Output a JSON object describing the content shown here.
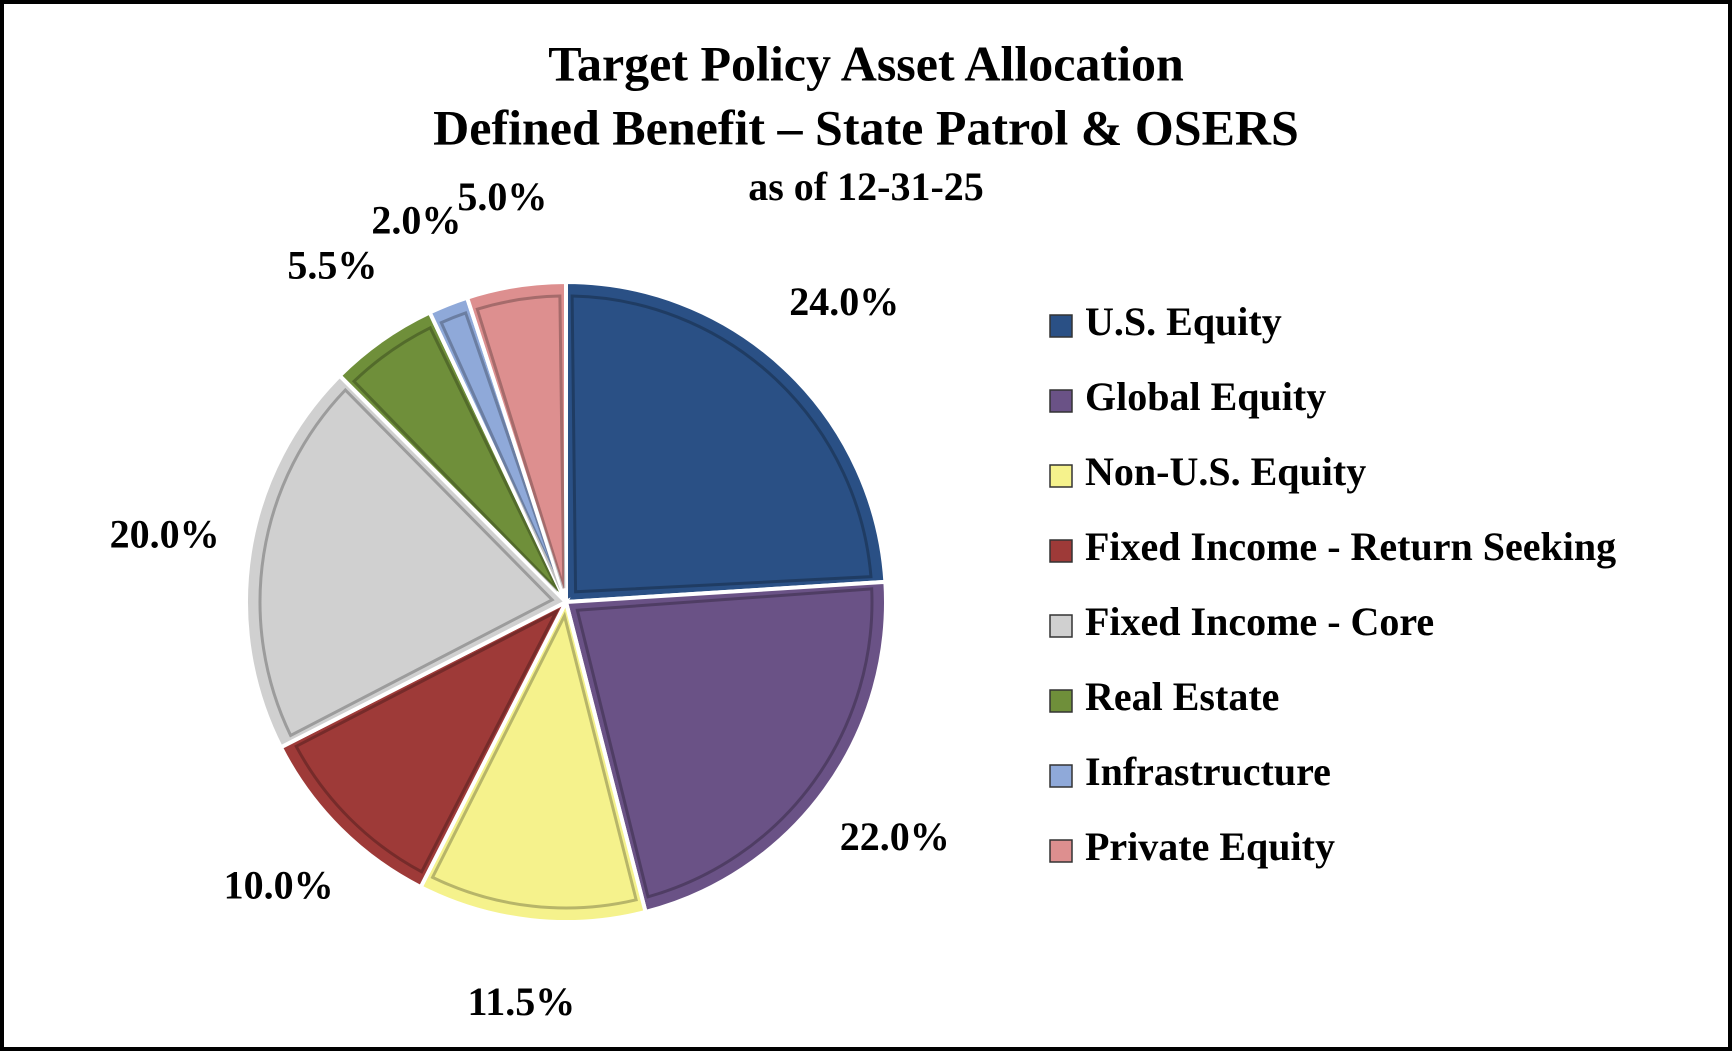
{
  "chart_data": {
    "type": "pie",
    "title": "Target Policy Asset Allocation",
    "subtitle": "Defined Benefit – State Patrol & OSERS",
    "note": "as of 12-31-25",
    "categories": [
      "U.S. Equity",
      "Global Equity",
      "Non-U.S. Equity",
      "Fixed Income - Return Seeking",
      "Fixed Income - Core",
      "Real Estate",
      "Infrastructure",
      "Private Equity"
    ],
    "values": [
      24,
      22,
      11.5,
      10,
      20,
      5.5,
      2,
      5
    ],
    "value_labels": [
      "24.0%",
      "22.0%",
      "11.5%",
      "10.0%",
      "20.0%",
      "5.5%",
      "2.0%",
      "5.0%"
    ],
    "colors": [
      "#2a5085",
      "#6a5286",
      "#f5f28c",
      "#9e3a38",
      "#d0d0d0",
      "#6f8f3a",
      "#8fa9d9",
      "#dd8f8f"
    ],
    "legend": "right"
  }
}
